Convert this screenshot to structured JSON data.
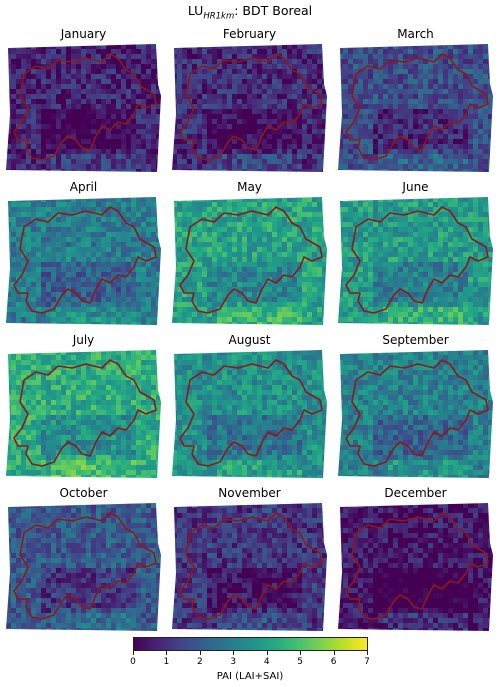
{
  "figure": {
    "title_main": "LU",
    "title_sub": "HR1km",
    "title_rest": ": BDT Boreal"
  },
  "panels": [
    {
      "month": "January",
      "level": 0.1
    },
    {
      "month": "February",
      "level": 0.13
    },
    {
      "month": "March",
      "level": 0.24
    },
    {
      "month": "April",
      "level": 0.42
    },
    {
      "month": "May",
      "level": 0.58
    },
    {
      "month": "June",
      "level": 0.55
    },
    {
      "month": "July",
      "level": 0.62
    },
    {
      "month": "August",
      "level": 0.5
    },
    {
      "month": "September",
      "level": 0.44
    },
    {
      "month": "October",
      "level": 0.28
    },
    {
      "month": "November",
      "level": 0.16
    },
    {
      "month": "December",
      "level": 0.05
    }
  ],
  "colorbar": {
    "label": "PAI (LAI+SAI)",
    "min": 0,
    "max": 7,
    "ticks": [
      "0",
      "1",
      "2",
      "3",
      "4",
      "5",
      "6",
      "7"
    ],
    "colormap": "viridis"
  },
  "colors": {
    "border_line": "#8b1a1a"
  }
}
